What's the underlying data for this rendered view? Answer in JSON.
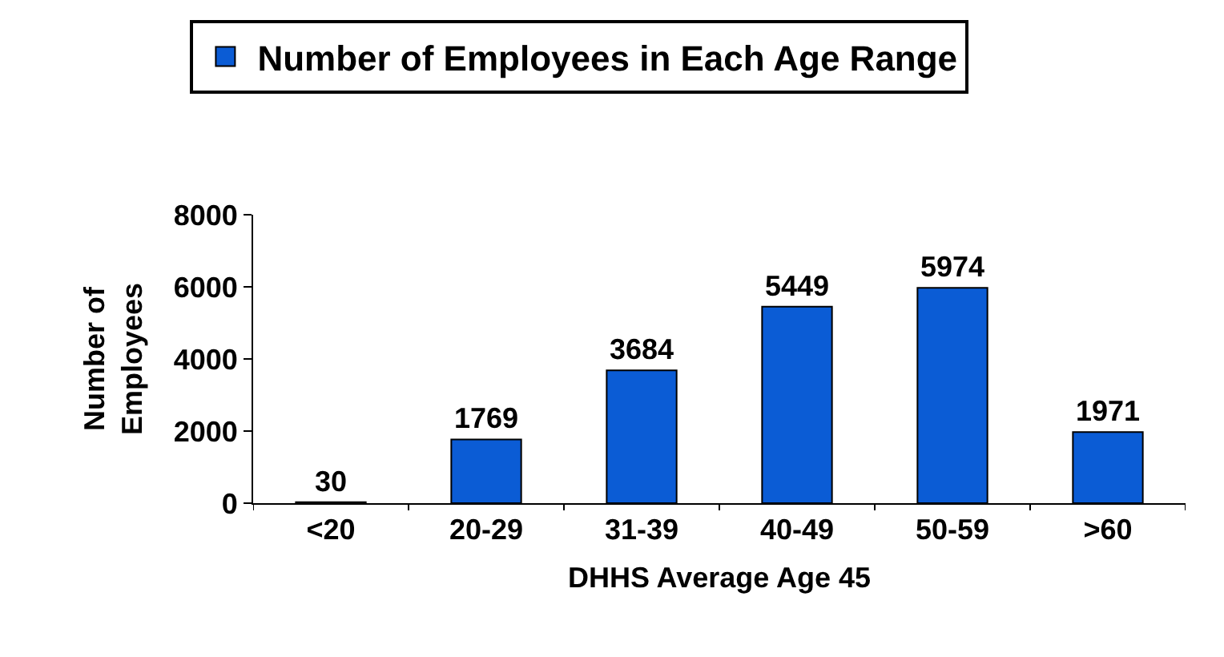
{
  "chart_data": {
    "type": "bar",
    "xlabel": "DHHS Average Age 45",
    "ylabel": "Number of\nEmployees",
    "categories": [
      "<20",
      "20-29",
      "31-39",
      "40-49",
      "50-59",
      ">60"
    ],
    "series": [
      {
        "name": "Number of Employees in Each Age Range",
        "color": "#0b5cd5",
        "values": [
          30,
          1769,
          3684,
          5449,
          5974,
          1971
        ]
      }
    ],
    "ylim": [
      0,
      8000
    ],
    "yticks": [
      0,
      2000,
      4000,
      6000,
      8000
    ],
    "grid": false,
    "legend": "top",
    "data_labels": true
  }
}
